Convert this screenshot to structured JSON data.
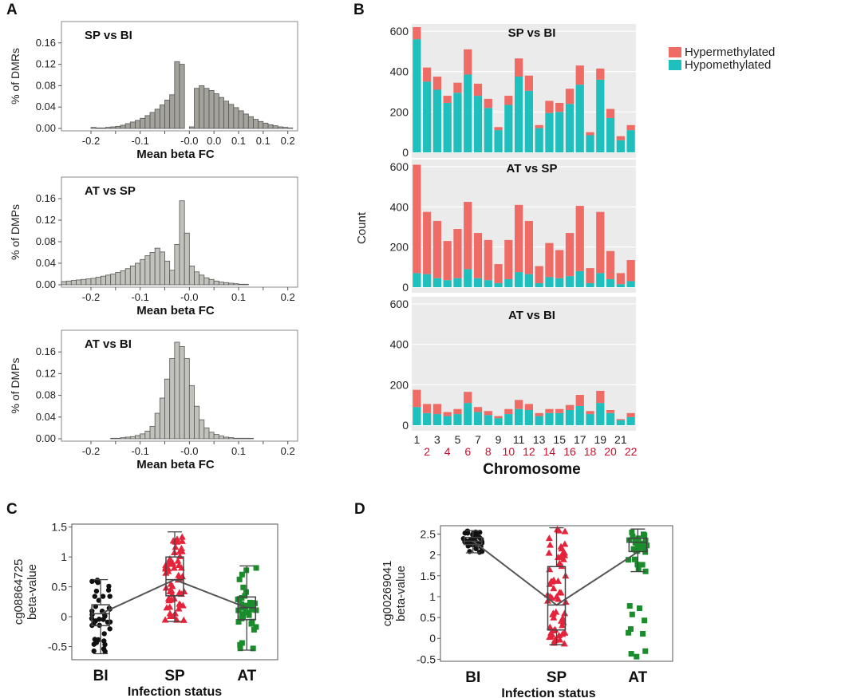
{
  "chart_data": [
    {
      "panel": "A",
      "type": "bar",
      "title": "SP vs BI",
      "xlabel": "Mean beta FC",
      "ylabel": "% of DMRs",
      "xlim": [
        -0.26,
        0.22
      ],
      "ylim": [
        0,
        0.2
      ],
      "yticks": [
        0,
        0.04,
        0.08,
        0.12,
        0.16
      ],
      "ytick_labels": [
        "0.00",
        "0.04",
        "0.08",
        "0.12",
        "0.16"
      ],
      "xticks": [
        -0.2,
        -0.15,
        -0.1,
        -0.05,
        0,
        0.05,
        0.1,
        0.15,
        0.2
      ],
      "xtick_labels": [
        "-0.2",
        "",
        "-0.1",
        "",
        "-0.0",
        "0.0",
        "0.1",
        "0.1",
        "0.2"
      ],
      "bin_width": 0.01,
      "bin_start": -0.2,
      "values": [
        0.002,
        0.001,
        0.001,
        0.002,
        0.003,
        0.004,
        0.006,
        0.009,
        0.012,
        0.015,
        0.019,
        0.024,
        0.03,
        0.036,
        0.044,
        0.053,
        0.063,
        0.125,
        0.12,
        0.0,
        0.003,
        0.075,
        0.08,
        0.075,
        0.071,
        0.065,
        0.058,
        0.051,
        0.045,
        0.039,
        0.033,
        0.027,
        0.022,
        0.017,
        0.013,
        0.01,
        0.007,
        0.005,
        0.003,
        0.002,
        0.001
      ]
    },
    {
      "panel": "A",
      "type": "bar",
      "title": "AT vs SP",
      "xlabel": "Mean beta FC",
      "ylabel": "% of DMPs",
      "xlim": [
        -0.26,
        0.22
      ],
      "ylim": [
        0,
        0.2
      ],
      "yticks": [
        0,
        0.04,
        0.08,
        0.12,
        0.16
      ],
      "ytick_labels": [
        "0.00",
        "0.04",
        "0.08",
        "0.12",
        "0.16"
      ],
      "xticks": [
        -0.2,
        -0.15,
        -0.1,
        -0.05,
        0,
        0.05,
        0.1,
        0.15,
        0.2
      ],
      "xtick_labels": [
        "-0.2",
        "",
        "-0.1",
        "",
        "-0.0",
        "",
        "0.1",
        "",
        "0.2"
      ],
      "bin_width": 0.01,
      "bin_start": -0.26,
      "values": [
        0.006,
        0.007,
        0.008,
        0.009,
        0.01,
        0.011,
        0.012,
        0.014,
        0.016,
        0.018,
        0.02,
        0.023,
        0.026,
        0.03,
        0.035,
        0.04,
        0.047,
        0.054,
        0.06,
        0.068,
        0.061,
        0.044,
        0.027,
        0.075,
        0.156,
        0.096,
        0.035,
        0.024,
        0.018,
        0.013,
        0.01,
        0.007,
        0.005,
        0.004,
        0.003,
        0.002,
        0.001,
        0.001,
        0.0
      ]
    },
    {
      "panel": "A",
      "type": "bar",
      "title": "AT vs BI",
      "xlabel": "Mean beta FC",
      "ylabel": "% of DMPs",
      "xlim": [
        -0.26,
        0.22
      ],
      "ylim": [
        0,
        0.2
      ],
      "yticks": [
        0,
        0.04,
        0.08,
        0.12,
        0.16
      ],
      "ytick_labels": [
        "0.00",
        "0.04",
        "0.08",
        "0.12",
        "0.16"
      ],
      "xticks": [
        -0.2,
        -0.15,
        -0.1,
        -0.05,
        0,
        0.05,
        0.1,
        0.15,
        0.2
      ],
      "xtick_labels": [
        "-0.2",
        "",
        "-0.1",
        "",
        "-0.0",
        "",
        "0.1",
        "",
        "0.2"
      ],
      "bin_width": 0.01,
      "bin_start": -0.16,
      "values": [
        0.001,
        0.001,
        0.002,
        0.003,
        0.004,
        0.006,
        0.009,
        0.014,
        0.023,
        0.047,
        0.075,
        0.11,
        0.148,
        0.178,
        0.17,
        0.148,
        0.098,
        0.06,
        0.035,
        0.02,
        0.012,
        0.008,
        0.005,
        0.003,
        0.002,
        0.001,
        0.001,
        0.001,
        0.001
      ]
    },
    {
      "panel": "B",
      "type": "bar",
      "stacked": true,
      "ylabel": "Count",
      "xlabel": "Chromosome",
      "legend": [
        "Hypermethylated",
        "Hypomethylated"
      ],
      "legend_position": "top-right",
      "colors": {
        "Hypermethylated": "#ee6b66",
        "Hypomethylated": "#1ebfbc"
      },
      "categories": [
        "1",
        "2",
        "3",
        "4",
        "5",
        "6",
        "7",
        "8",
        "9",
        "10",
        "11",
        "12",
        "13",
        "14",
        "15",
        "16",
        "17",
        "18",
        "19",
        "20",
        "21",
        "22"
      ],
      "odd_labels": [
        "1",
        "3",
        "5",
        "7",
        "9",
        "11",
        "13",
        "15",
        "17",
        "19",
        "21"
      ],
      "even_labels": [
        "2",
        "4",
        "6",
        "8",
        "10",
        "12",
        "14",
        "16",
        "18",
        "20",
        "22"
      ],
      "ylim": [
        0,
        620
      ],
      "yticks": [
        0,
        200,
        400,
        600
      ],
      "facets": [
        {
          "title": "SP vs BI",
          "hyper": [
            105,
            70,
            65,
            35,
            50,
            125,
            60,
            45,
            15,
            45,
            90,
            75,
            15,
            60,
            45,
            75,
            95,
            15,
            55,
            45,
            20,
            25
          ],
          "hypo": [
            560,
            350,
            310,
            245,
            295,
            385,
            280,
            220,
            110,
            235,
            375,
            305,
            120,
            195,
            200,
            240,
            335,
            85,
            360,
            170,
            60,
            110
          ]
        },
        {
          "title": "AT vs SP",
          "hyper": [
            540,
            310,
            285,
            195,
            245,
            335,
            225,
            200,
            95,
            195,
            335,
            265,
            85,
            170,
            140,
            215,
            325,
            75,
            305,
            140,
            55,
            105
          ],
          "hypo": [
            70,
            65,
            45,
            35,
            45,
            90,
            45,
            35,
            20,
            40,
            75,
            65,
            20,
            50,
            45,
            55,
            80,
            20,
            70,
            40,
            15,
            30
          ]
        },
        {
          "title": "AT vs BI",
          "hyper": [
            85,
            45,
            50,
            20,
            25,
            55,
            25,
            20,
            10,
            25,
            45,
            30,
            15,
            20,
            20,
            25,
            55,
            15,
            60,
            15,
            5,
            20
          ],
          "hypo": [
            90,
            60,
            55,
            45,
            55,
            110,
            65,
            50,
            35,
            55,
            80,
            75,
            45,
            60,
            60,
            75,
            95,
            55,
            110,
            60,
            25,
            40
          ]
        }
      ]
    },
    {
      "panel": "C",
      "type": "scatter",
      "subtype": "box",
      "xlabel": "Infection status",
      "ylabel_line1": "cg08864725",
      "ylabel_line2": "beta-value",
      "categories": [
        "BI",
        "SP",
        "AT"
      ],
      "ylim": [
        -0.72,
        1.55
      ],
      "yticks": [
        -0.5,
        0,
        0.5,
        1,
        1.5
      ],
      "ytick_labels": [
        "-0.5",
        "0",
        "0.5",
        "1",
        "1.5"
      ],
      "box": [
        {
          "min": -0.62,
          "q1": -0.15,
          "median": 0.05,
          "q3": 0.2,
          "max": 0.62
        },
        {
          "min": -0.08,
          "q1": 0.35,
          "median": 0.62,
          "q3": 1.0,
          "max": 1.42
        },
        {
          "min": -0.56,
          "q1": -0.05,
          "median": 0.15,
          "q3": 0.33,
          "max": 0.85
        }
      ],
      "trend": [
        0.05,
        0.62,
        0.15
      ]
    },
    {
      "panel": "D",
      "type": "scatter",
      "subtype": "box",
      "xlabel": "Infection  status",
      "ylabel_line1": "cg00269041",
      "ylabel_line2": "beta-value",
      "categories": [
        "BI",
        "SP",
        "AT"
      ],
      "ylim": [
        -0.55,
        2.7
      ],
      "yticks": [
        -0.5,
        0,
        0.5,
        1,
        1.5,
        2,
        2.5
      ],
      "ytick_labels": [
        "-0.5",
        "0",
        "0.5",
        "1",
        "1.5",
        "2",
        "2.5"
      ],
      "box": [
        {
          "min": 2.05,
          "q1": 2.25,
          "median": 2.33,
          "q3": 2.42,
          "max": 2.58
        },
        {
          "min": -0.15,
          "q1": 0.2,
          "median": 0.8,
          "q3": 1.72,
          "max": 2.65
        },
        {
          "min": 1.6,
          "q1": 2.08,
          "median": 2.3,
          "q3": 2.4,
          "max": 2.62
        }
      ],
      "trend": [
        2.33,
        0.8,
        2.07
      ]
    }
  ],
  "panel_labels": {
    "A": "A",
    "B": "B",
    "C": "C",
    "D": "D"
  }
}
